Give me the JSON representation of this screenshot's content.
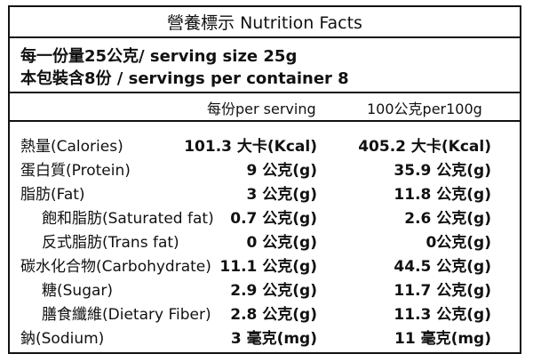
{
  "title": "營養標示 Nutrition Facts",
  "serving_lines": [
    "每一份量25公克/ serving size 25g",
    "本包裝含8份 / servings per container 8"
  ],
  "columns": {
    "per_serving": "每份per serving",
    "per_100g": "100公克per100g"
  },
  "rows": [
    {
      "label": "熱量(Calories)",
      "per_serving": "101.3 大卡(Kcal)",
      "per_100g": "405.2 大卡(Kcal)",
      "indent": false
    },
    {
      "label": "蛋白質(Protein)",
      "per_serving": "9 公克(g)",
      "per_100g": "35.9 公克(g)",
      "indent": false
    },
    {
      "label": "脂肪(Fat)",
      "per_serving": "3 公克(g)",
      "per_100g": "11.8 公克(g)",
      "indent": false
    },
    {
      "label": "飽和脂肪(Saturated fat)",
      "per_serving": "0.7 公克(g)",
      "per_100g": "2.6 公克(g)",
      "indent": true
    },
    {
      "label": "反式脂肪(Trans fat)",
      "per_serving": "0 公克(g)",
      "per_100g": "0公克(g)",
      "indent": true
    },
    {
      "label": "碳水化合物(Carbohydrate)",
      "per_serving": "11.1 公克(g)",
      "per_100g": "44.5 公克(g)",
      "indent": false
    },
    {
      "label": "糖(Sugar)",
      "per_serving": "2.9 公克(g)",
      "per_100g": "11.7 公克(g)",
      "indent": true
    },
    {
      "label": "膳食纖維(Dietary Fiber)",
      "per_serving": "2.8 公克(g)",
      "per_100g": "11.3 公克(g)",
      "indent": true
    },
    {
      "label": "鈉(Sodium)",
      "per_serving": "3 毫克(mg)",
      "per_100g": "11 毫克(mg)",
      "indent": false
    }
  ]
}
